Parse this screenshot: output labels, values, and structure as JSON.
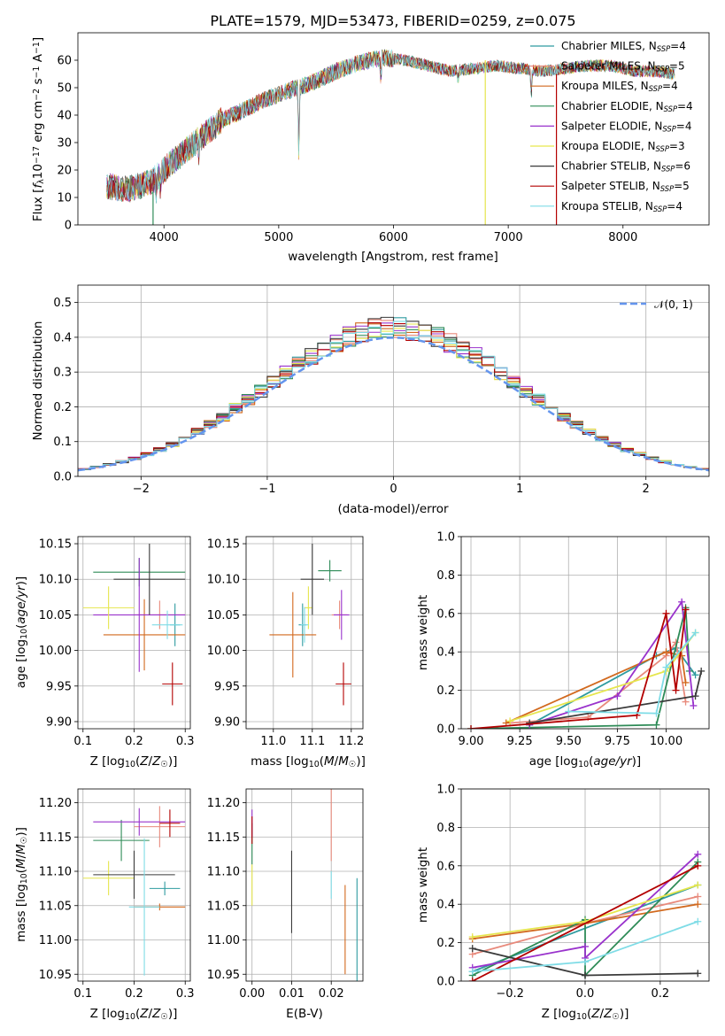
{
  "figure": {
    "title": "PLATE=1579, MJD=53473, FIBERID=0259, z=0.075"
  },
  "colors": {
    "grid": "#b0b0b0",
    "normal_curve": "#6495ed"
  },
  "series_styles": [
    {
      "name": "Chabrier MILES",
      "nssp": "4",
      "color": "#2f9ba0"
    },
    {
      "name": "Salpeter MILES",
      "nssp": "5",
      "color": "#e88a7c"
    },
    {
      "name": "Kroupa MILES",
      "nssp": "4",
      "color": "#d2691e"
    },
    {
      "name": "Chabrier ELODIE",
      "nssp": "4",
      "color": "#2e8b57"
    },
    {
      "name": "Salpeter ELODIE",
      "nssp": "4",
      "color": "#9932cc"
    },
    {
      "name": "Kroupa ELODIE",
      "nssp": "3",
      "color": "#e6e64d"
    },
    {
      "name": "Chabrier STELIB",
      "nssp": "6",
      "color": "#3a3a3a"
    },
    {
      "name": "Salpeter STELIB",
      "nssp": "5",
      "color": "#b30000"
    },
    {
      "name": "Kroupa STELIB",
      "nssp": "4",
      "color": "#7fdce6"
    }
  ],
  "chart_data": [
    {
      "id": "spectrum",
      "type": "line",
      "xlabel": "wavelength [Angstrom, rest frame]",
      "ylabel": "Flux [f_λ 10^-17 erg cm^-2 s^-1 A^-1]",
      "xlim": [
        3250,
        8750
      ],
      "ylim": [
        0,
        70
      ],
      "xticks": [
        4000,
        5000,
        6000,
        7000,
        8000
      ],
      "yticks": [
        0,
        10,
        20,
        30,
        40,
        50,
        60
      ],
      "grid": false,
      "legend_position": "upper right",
      "continuum": {
        "x": [
          3500,
          3700,
          3900,
          4000,
          4100,
          4300,
          4500,
          4700,
          4900,
          5100,
          5300,
          5500,
          5700,
          5900,
          6100,
          6300,
          6500,
          6700,
          6900,
          7100,
          7300,
          7500,
          7700,
          7900,
          8100,
          8300,
          8450
        ],
        "y": [
          14,
          13,
          16,
          20,
          24,
          31,
          38,
          42,
          46,
          49,
          52,
          56,
          59,
          61,
          60,
          58,
          56,
          57,
          58,
          57,
          56,
          57,
          58,
          58,
          56,
          56,
          55
        ]
      },
      "absorption_lines": [
        {
          "x": 3934,
          "depth": 6
        },
        {
          "x": 3968,
          "depth": 5
        },
        {
          "x": 4304,
          "depth": 6
        },
        {
          "x": 5175,
          "depth": 26
        },
        {
          "x": 5890,
          "depth": 8
        },
        {
          "x": 6563,
          "depth": 4
        },
        {
          "x": 7200,
          "depth": 10
        }
      ],
      "artifacts": [
        {
          "x": 3905,
          "y_from": 0,
          "y_to": 12
        },
        {
          "x": 6800,
          "y_from": 0,
          "y_to": 60
        },
        {
          "x": 7420,
          "y_from": 0,
          "y_to": 55
        }
      ]
    },
    {
      "id": "residuals",
      "type": "step",
      "xlabel": "(data-model)/error",
      "ylabel": "Normed distribution",
      "xlim": [
        -2.5,
        2.5
      ],
      "ylim": [
        0,
        0.55
      ],
      "xticks": [
        -2,
        -1,
        0,
        1,
        2
      ],
      "yticks": [
        0.0,
        0.1,
        0.2,
        0.3,
        0.4,
        0.5
      ],
      "grid": true,
      "reference_curve": {
        "label": "𝒩(0, 1)",
        "mean": 0,
        "sigma": 1
      },
      "bin_width": 0.1
    },
    {
      "id": "age_vs_Z",
      "type": "errorbar",
      "xlabel": "Z [log10(Z/Z☉)]",
      "ylabel": "age [log10(age/yr)]",
      "xlim": [
        0.09,
        0.31
      ],
      "ylim": [
        9.89,
        10.16
      ],
      "xticks": [
        0.1,
        0.2,
        0.3
      ],
      "yticks": [
        9.9,
        9.95,
        10.0,
        10.05,
        10.1,
        10.15
      ],
      "grid": true,
      "points": [
        {
          "series": 0,
          "x": 0.28,
          "xerr": 0.01,
          "y": 10.036,
          "yerr": 0.03
        },
        {
          "series": 1,
          "x": 0.25,
          "xerr": 0.05,
          "y": 10.05,
          "yerr": 0.02
        },
        {
          "series": 2,
          "x": 0.22,
          "xerr": 0.08,
          "y": 10.022,
          "yerr": 0.05
        },
        {
          "series": 3,
          "x": 0.21,
          "xerr": 0.09,
          "y": 10.11,
          "yerr": 0.02
        },
        {
          "series": 4,
          "x": 0.21,
          "xerr": 0.09,
          "y": 10.05,
          "yerr": 0.08
        },
        {
          "series": 5,
          "x": 0.15,
          "xerr": 0.05,
          "y": 10.06,
          "yerr": 0.03
        },
        {
          "series": 6,
          "x": 0.23,
          "xerr": 0.07,
          "y": 10.1,
          "yerr": 0.05
        },
        {
          "series": 7,
          "x": 0.275,
          "xerr": 0.02,
          "y": 9.953,
          "yerr": 0.03
        },
        {
          "series": 8,
          "x": 0.265,
          "xerr": 0.03,
          "y": 10.036,
          "yerr": 0.02
        }
      ]
    },
    {
      "id": "age_vs_mass",
      "type": "errorbar",
      "xlabel": "mass [log10(M/M☉)]",
      "ylabel": "",
      "xlim": [
        10.93,
        11.23
      ],
      "ylim": [
        9.89,
        10.16
      ],
      "xticks": [
        11.0,
        11.1,
        11.2
      ],
      "yticks": [
        9.9,
        9.95,
        10.0,
        10.05,
        10.1,
        10.15
      ],
      "grid": true,
      "points": [
        {
          "series": 0,
          "x": 11.075,
          "xerr": 0.01,
          "y": 10.036,
          "yerr": 0.03
        },
        {
          "series": 1,
          "x": 11.17,
          "xerr": 0.02,
          "y": 10.05,
          "yerr": 0.02
        },
        {
          "series": 2,
          "x": 11.05,
          "xerr": 0.06,
          "y": 10.022,
          "yerr": 0.06
        },
        {
          "series": 3,
          "x": 11.145,
          "xerr": 0.03,
          "y": 10.112,
          "yerr": 0.015
        },
        {
          "series": 4,
          "x": 11.175,
          "xerr": 0.02,
          "y": 10.05,
          "yerr": 0.035
        },
        {
          "series": 5,
          "x": 11.09,
          "xerr": 0.01,
          "y": 10.06,
          "yerr": 0.03
        },
        {
          "series": 6,
          "x": 11.1,
          "xerr": 0.03,
          "y": 10.1,
          "yerr": 0.05
        },
        {
          "series": 7,
          "x": 11.18,
          "xerr": 0.02,
          "y": 9.953,
          "yerr": 0.03
        },
        {
          "series": 8,
          "x": 11.08,
          "xerr": 0.01,
          "y": 10.036,
          "yerr": 0.025
        }
      ]
    },
    {
      "id": "mass_weight_vs_age",
      "type": "line",
      "xlabel": "age [log10(age/yr)]",
      "ylabel": "mass weight",
      "xlim": [
        8.95,
        10.22
      ],
      "ylim": [
        0,
        1
      ],
      "xticks": [
        9.0,
        9.25,
        9.5,
        9.75,
        10.0
      ],
      "yticks": [
        0.0,
        0.2,
        0.4,
        0.6,
        0.8,
        1.0
      ],
      "grid": true,
      "series": [
        {
          "series": 0,
          "x": [
            9.3,
            9.95,
            10.05,
            10.15
          ],
          "y": [
            0.02,
            0.38,
            0.42,
            0.28
          ]
        },
        {
          "series": 1,
          "x": [
            9.2,
            9.6,
            10.0,
            10.05,
            10.1
          ],
          "y": [
            0.03,
            0.06,
            0.38,
            0.45,
            0.14
          ]
        },
        {
          "series": 2,
          "x": [
            9.18,
            10.0,
            10.08,
            10.1
          ],
          "y": [
            0.03,
            0.4,
            0.38,
            0.24
          ]
        },
        {
          "series": 3,
          "x": [
            9.0,
            9.95,
            10.1,
            10.12
          ],
          "y": [
            0.0,
            0.02,
            0.63,
            0.3
          ]
        },
        {
          "series": 4,
          "x": [
            9.3,
            9.75,
            10.08,
            10.14
          ],
          "y": [
            0.02,
            0.17,
            0.66,
            0.12
          ]
        },
        {
          "series": 5,
          "x": [
            9.2,
            10.0,
            10.15
          ],
          "y": [
            0.04,
            0.3,
            0.5
          ]
        },
        {
          "series": 6,
          "x": [
            9.3,
            10.15,
            10.18
          ],
          "y": [
            0.03,
            0.17,
            0.3
          ]
        },
        {
          "series": 7,
          "x": [
            9.0,
            9.85,
            10.0,
            10.05,
            10.1
          ],
          "y": [
            0.0,
            0.07,
            0.6,
            0.2,
            0.62
          ]
        },
        {
          "series": 8,
          "x": [
            9.5,
            9.95,
            10.0,
            10.15
          ],
          "y": [
            0.09,
            0.08,
            0.32,
            0.5
          ]
        }
      ]
    },
    {
      "id": "mass_vs_Z",
      "type": "errorbar",
      "xlabel": "Z [log10(Z/Z☉)]",
      "ylabel": "mass [log10(M/M☉)]",
      "xlim": [
        0.09,
        0.31
      ],
      "ylim": [
        10.94,
        11.22
      ],
      "xticks": [
        0.1,
        0.2,
        0.3
      ],
      "yticks": [
        10.95,
        11.0,
        11.05,
        11.1,
        11.15,
        11.2
      ],
      "grid": true,
      "points": [
        {
          "series": 0,
          "x": 0.26,
          "xerr": 0.03,
          "y": 11.075,
          "yerr": 0.01
        },
        {
          "series": 1,
          "x": 0.25,
          "xerr": 0.05,
          "y": 11.165,
          "yerr": 0.03
        },
        {
          "series": 2,
          "x": 0.25,
          "xerr": 0.05,
          "y": 11.048,
          "yerr": 0.005
        },
        {
          "series": 3,
          "x": 0.175,
          "xerr": 0.055,
          "y": 11.145,
          "yerr": 0.03
        },
        {
          "series": 4,
          "x": 0.21,
          "xerr": 0.09,
          "y": 11.172,
          "yerr": 0.02
        },
        {
          "series": 5,
          "x": 0.15,
          "xerr": 0.05,
          "y": 11.09,
          "yerr": 0.025
        },
        {
          "series": 6,
          "x": 0.2,
          "xerr": 0.08,
          "y": 11.095,
          "yerr": 0.035
        },
        {
          "series": 7,
          "x": 0.27,
          "xerr": 0.02,
          "y": 11.17,
          "yerr": 0.02
        },
        {
          "series": 8,
          "x": 0.22,
          "xerr": 0.03,
          "y": 11.048,
          "yerr": 0.1
        }
      ]
    },
    {
      "id": "mass_vs_ebv",
      "type": "errorbar",
      "xlabel": "E(B-V)",
      "ylabel": "",
      "xlim": [
        -0.0015,
        0.028
      ],
      "ylim": [
        10.94,
        11.22
      ],
      "xticks": [
        0.0,
        0.01,
        0.02
      ],
      "xtick_labels": [
        "0.00",
        "0.01",
        "0.02"
      ],
      "yticks": [
        10.95,
        11.0,
        11.05,
        11.1,
        11.15,
        11.2
      ],
      "grid": true,
      "points": [
        {
          "series": 0,
          "x": 0.0265,
          "xerr": 0,
          "y": 11.01,
          "yerr": 0.08
        },
        {
          "series": 1,
          "x": 0.02,
          "xerr": 0,
          "y": 11.17,
          "yerr": 0.055
        },
        {
          "series": 2,
          "x": 0.0235,
          "xerr": 0,
          "y": 11.015,
          "yerr": 0.065
        },
        {
          "series": 3,
          "x": 0.0,
          "xerr": 0,
          "y": 11.14,
          "yerr": 0.03
        },
        {
          "series": 4,
          "x": 0.0,
          "xerr": 0,
          "y": 11.17,
          "yerr": 0.02
        },
        {
          "series": 5,
          "x": 0.0,
          "xerr": 0,
          "y": 11.08,
          "yerr": 0.03
        },
        {
          "series": 6,
          "x": 0.01,
          "xerr": 0,
          "y": 11.07,
          "yerr": 0.06
        },
        {
          "series": 7,
          "x": 0.0,
          "xerr": 0,
          "y": 11.16,
          "yerr": 0.02
        },
        {
          "series": 8,
          "x": 0.02,
          "xerr": 0,
          "y": 11.08,
          "yerr": 0.02
        }
      ]
    },
    {
      "id": "mass_weight_vs_Z",
      "type": "line",
      "xlabel": "Z [log10(Z/Z☉)]",
      "ylabel": "mass weight",
      "xlim": [
        -0.33,
        0.33
      ],
      "ylim": [
        0,
        1
      ],
      "xticks": [
        -0.2,
        0.0,
        0.2
      ],
      "yticks": [
        0.0,
        0.2,
        0.4,
        0.6,
        0.8,
        1.0
      ],
      "grid": true,
      "series": [
        {
          "series": 0,
          "x": [
            -0.3,
            0.3
          ],
          "y": [
            0.05,
            0.5
          ]
        },
        {
          "series": 1,
          "x": [
            -0.3,
            0.0,
            0.3
          ],
          "y": [
            0.14,
            0.3,
            0.44
          ]
        },
        {
          "series": 2,
          "x": [
            -0.3,
            0.0,
            0.3
          ],
          "y": [
            0.22,
            0.3,
            0.4
          ]
        },
        {
          "series": 3,
          "x": [
            -0.3,
            0.0,
            0.0,
            0.3
          ],
          "y": [
            0.03,
            0.32,
            0.03,
            0.62
          ]
        },
        {
          "series": 4,
          "x": [
            -0.3,
            0.0,
            0.0,
            0.3
          ],
          "y": [
            0.07,
            0.18,
            0.12,
            0.66
          ]
        },
        {
          "series": 5,
          "x": [
            -0.3,
            0.0,
            0.3
          ],
          "y": [
            0.23,
            0.31,
            0.5
          ]
        },
        {
          "series": 6,
          "x": [
            -0.3,
            0.0,
            0.0,
            0.3
          ],
          "y": [
            0.17,
            0.03,
            0.03,
            0.04
          ]
        },
        {
          "series": 7,
          "x": [
            -0.3,
            0.3
          ],
          "y": [
            0.0,
            0.6
          ]
        },
        {
          "series": 8,
          "x": [
            -0.3,
            0.0,
            0.3
          ],
          "y": [
            0.05,
            0.1,
            0.31
          ]
        }
      ]
    }
  ]
}
